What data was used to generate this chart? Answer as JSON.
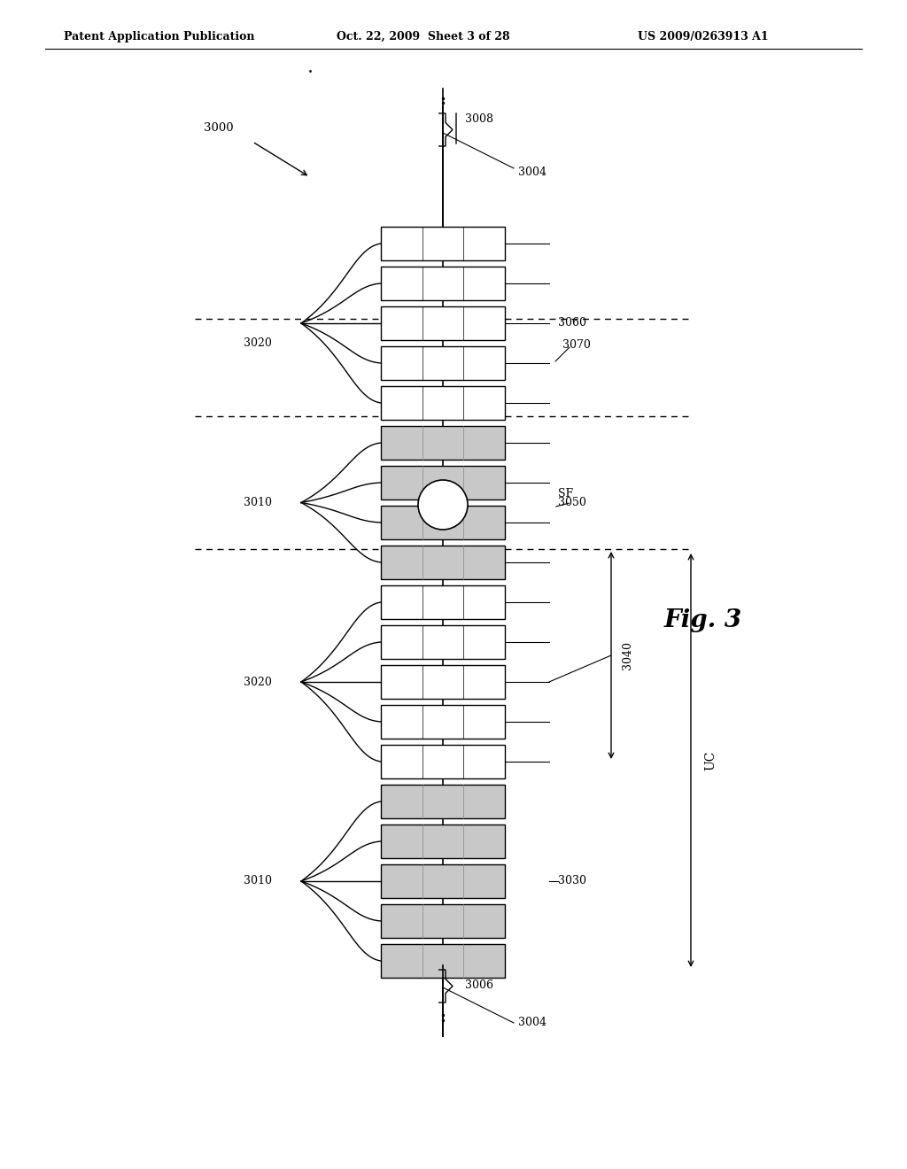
{
  "header_left": "Patent Application Publication",
  "header_mid": "Oct. 22, 2009  Sheet 3 of 28",
  "header_right": "US 2009/0263913 A1",
  "fig_label": "Fig. 3",
  "label_3000": "3000",
  "label_3004_top": "3004",
  "label_3004_bot": "3004",
  "label_3006": "3006",
  "label_3008": "3008",
  "label_3010_top": "3010",
  "label_3010_bot": "3010",
  "label_3020_top": "3020",
  "label_3020_bot": "3020",
  "label_3030": "3030",
  "label_3040": "3040",
  "label_3050": "3050",
  "label_3060": "3060",
  "label_3070": "3070",
  "label_SF": "SF",
  "label_UC": "UC",
  "bg_color": "#ffffff",
  "line_color": "#000000",
  "gray_fill": "#c8c8c8",
  "white_fill": "#ffffff"
}
